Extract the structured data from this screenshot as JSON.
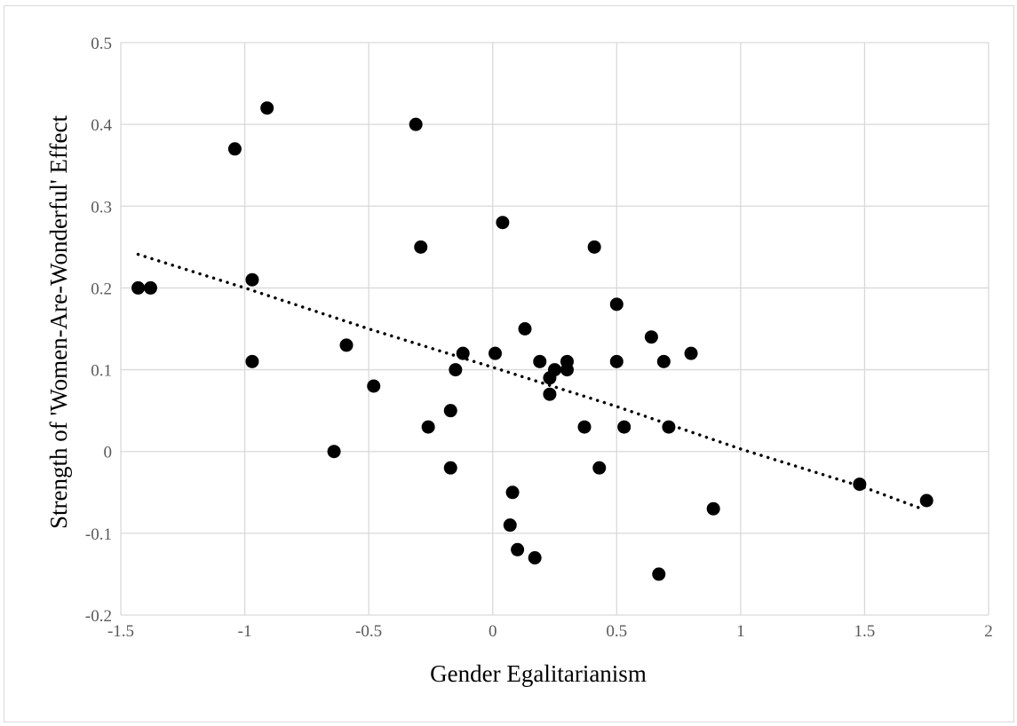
{
  "chart_data": {
    "type": "scatter",
    "title": "",
    "xlabel": "Gender Egalitarianism",
    "ylabel": "Strength of 'Women-Are-Wonderful' Effect",
    "xlim": [
      -1.5,
      2
    ],
    "ylim": [
      -0.2,
      0.5
    ],
    "x_ticks": [
      -1.5,
      -1,
      -0.5,
      0,
      0.5,
      1,
      1.5,
      2
    ],
    "x_tick_labels": [
      "-1.5",
      "-1",
      "-0.5",
      "0",
      "0.5",
      "1",
      "1.5",
      "2"
    ],
    "y_ticks": [
      -0.2,
      -0.1,
      0,
      0.1,
      0.2,
      0.3,
      0.4,
      0.5
    ],
    "y_tick_labels": [
      "-0.2",
      "-0.1",
      "0",
      "0.1",
      "0.2",
      "0.3",
      "0.4",
      "0.5"
    ],
    "grid": true,
    "legend": "none",
    "points": [
      {
        "x": -1.43,
        "y": 0.2
      },
      {
        "x": -1.38,
        "y": 0.2
      },
      {
        "x": -1.04,
        "y": 0.37
      },
      {
        "x": -0.91,
        "y": 0.42
      },
      {
        "x": -0.97,
        "y": 0.21
      },
      {
        "x": -0.97,
        "y": 0.11
      },
      {
        "x": -0.59,
        "y": 0.13
      },
      {
        "x": -0.64,
        "y": 0.0
      },
      {
        "x": -0.48,
        "y": 0.08
      },
      {
        "x": -0.31,
        "y": 0.4
      },
      {
        "x": -0.29,
        "y": 0.25
      },
      {
        "x": -0.26,
        "y": 0.03
      },
      {
        "x": -0.17,
        "y": 0.05
      },
      {
        "x": -0.17,
        "y": -0.02
      },
      {
        "x": -0.15,
        "y": 0.1
      },
      {
        "x": -0.12,
        "y": 0.12
      },
      {
        "x": 0.01,
        "y": 0.12
      },
      {
        "x": 0.04,
        "y": 0.28
      },
      {
        "x": 0.07,
        "y": -0.09
      },
      {
        "x": 0.08,
        "y": -0.05
      },
      {
        "x": 0.1,
        "y": -0.12
      },
      {
        "x": 0.13,
        "y": 0.15
      },
      {
        "x": 0.17,
        "y": -0.13
      },
      {
        "x": 0.19,
        "y": 0.11
      },
      {
        "x": 0.23,
        "y": 0.09
      },
      {
        "x": 0.23,
        "y": 0.07
      },
      {
        "x": 0.25,
        "y": 0.1
      },
      {
        "x": 0.3,
        "y": 0.11
      },
      {
        "x": 0.3,
        "y": 0.1
      },
      {
        "x": 0.37,
        "y": 0.03
      },
      {
        "x": 0.41,
        "y": 0.25
      },
      {
        "x": 0.43,
        "y": -0.02
      },
      {
        "x": 0.5,
        "y": 0.18
      },
      {
        "x": 0.5,
        "y": 0.11
      },
      {
        "x": 0.53,
        "y": 0.03
      },
      {
        "x": 0.64,
        "y": 0.14
      },
      {
        "x": 0.67,
        "y": -0.15
      },
      {
        "x": 0.69,
        "y": 0.11
      },
      {
        "x": 0.71,
        "y": 0.03
      },
      {
        "x": 0.8,
        "y": 0.12
      },
      {
        "x": 0.89,
        "y": -0.07
      },
      {
        "x": 1.48,
        "y": -0.04
      },
      {
        "x": 1.75,
        "y": -0.06
      }
    ],
    "trendline": {
      "style": "dotted",
      "points": [
        {
          "x": -1.43,
          "y": 0.241
        },
        {
          "x": -1.0,
          "y": 0.2
        },
        {
          "x": -0.5,
          "y": 0.15
        },
        {
          "x": 0.0,
          "y": 0.103
        },
        {
          "x": 0.5,
          "y": 0.055
        },
        {
          "x": 1.0,
          "y": 0.003
        },
        {
          "x": 1.5,
          "y": -0.044
        },
        {
          "x": 1.73,
          "y": -0.07
        }
      ]
    },
    "colors": {
      "points": "#000000",
      "gridlines": "#d9d9d9",
      "trendline": "#000000",
      "tick_labels": "#595959"
    }
  }
}
